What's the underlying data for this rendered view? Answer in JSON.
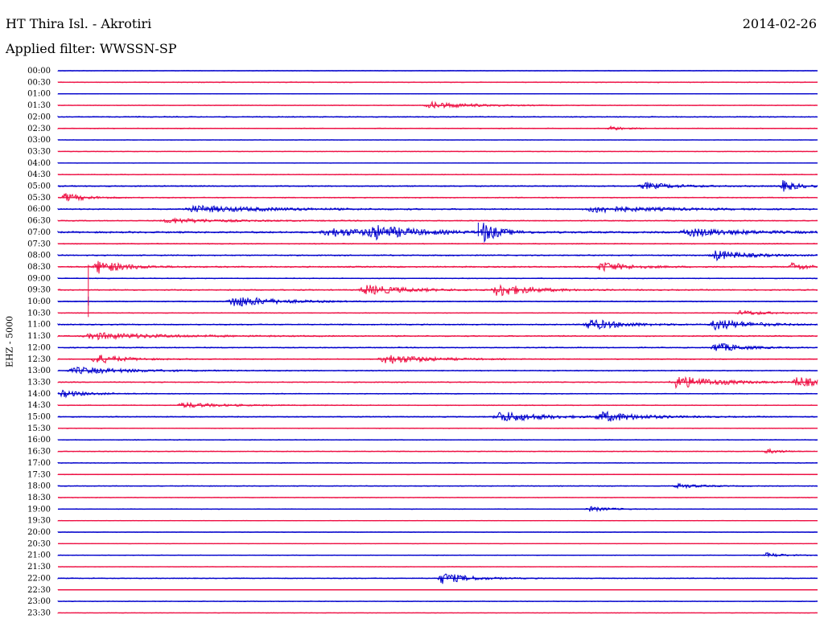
{
  "header": {
    "station": "HT Thira Isl. - Akrotiri",
    "date": "2014-02-26",
    "filter": "Applied filter: WWSSN-SP",
    "channel": "EHZ - 5000"
  },
  "colors": {
    "even_trace": "#0000cc",
    "odd_trace": "#ee1144"
  },
  "chart_data": {
    "type": "line",
    "title": "HT Thira Isl. - Akrotiri",
    "ylabel": "EHZ - 5000",
    "xlabel": "",
    "row_labels": [
      "00:00",
      "00:30",
      "01:00",
      "01:30",
      "02:00",
      "02:30",
      "03:00",
      "03:30",
      "04:00",
      "04:30",
      "05:00",
      "05:30",
      "06:00",
      "06:30",
      "07:00",
      "07:30",
      "08:00",
      "08:30",
      "09:00",
      "09:30",
      "10:00",
      "10:30",
      "11:00",
      "11:30",
      "12:00",
      "12:30",
      "13:00",
      "13:30",
      "14:00",
      "14:30",
      "15:00",
      "15:30",
      "16:00",
      "16:30",
      "17:00",
      "17:30",
      "18:00",
      "18:30",
      "19:00",
      "19:30",
      "20:00",
      "20:30",
      "21:00",
      "21:30",
      "22:00",
      "22:30",
      "23:00",
      "23:30"
    ],
    "x_range_minutes": [
      0,
      30
    ],
    "noise_level": [
      0.3,
      0.5,
      0.2,
      0.4,
      0.6,
      0.5,
      0.3,
      0.4,
      0.3,
      0.5,
      0.7,
      0.6,
      0.7,
      0.6,
      1.0,
      0.6,
      0.7,
      0.8,
      0.5,
      0.7,
      0.6,
      0.5,
      0.7,
      0.7,
      0.6,
      0.6,
      0.6,
      0.6,
      0.5,
      0.5,
      0.6,
      0.4,
      0.5,
      0.5,
      0.4,
      0.4,
      0.5,
      0.4,
      0.4,
      0.3,
      0.3,
      0.3,
      0.4,
      0.3,
      0.5,
      0.3,
      0.4,
      0.3
    ],
    "events": [
      {
        "row": 3,
        "minute": 14.8,
        "amp": 4,
        "dur": 1.6
      },
      {
        "row": 5,
        "minute": 21.8,
        "amp": 3,
        "dur": 0.5
      },
      {
        "row": 10,
        "minute": 23.2,
        "amp": 4,
        "dur": 1.2
      },
      {
        "row": 10,
        "minute": 28.6,
        "amp": 7,
        "dur": 0.6
      },
      {
        "row": 11,
        "minute": 0.3,
        "amp": 5,
        "dur": 0.8
      },
      {
        "row": 12,
        "minute": 5.5,
        "amp": 4,
        "dur": 3.0
      },
      {
        "row": 12,
        "minute": 21.3,
        "amp": 4,
        "dur": 2.5
      },
      {
        "row": 13,
        "minute": 4.5,
        "amp": 3,
        "dur": 2.0
      },
      {
        "row": 14,
        "minute": 10.8,
        "amp": 5,
        "dur": 2.0
      },
      {
        "row": 14,
        "minute": 12.5,
        "amp": 7,
        "dur": 1.5
      },
      {
        "row": 14,
        "minute": 16.8,
        "amp": 12,
        "dur": 0.6
      },
      {
        "row": 14,
        "minute": 25.0,
        "amp": 5,
        "dur": 2.0
      },
      {
        "row": 16,
        "minute": 26.0,
        "amp": 6,
        "dur": 1.2
      },
      {
        "row": 17,
        "minute": 1.6,
        "amp": 8,
        "dur": 1.0
      },
      {
        "row": 17,
        "minute": 21.5,
        "amp": 6,
        "dur": 1.0
      },
      {
        "row": 17,
        "minute": 29.0,
        "amp": 5,
        "dur": 0.6
      },
      {
        "row": 19,
        "minute": 12.2,
        "amp": 6,
        "dur": 1.5
      },
      {
        "row": 19,
        "minute": 17.4,
        "amp": 8,
        "dur": 1.2
      },
      {
        "row": 20,
        "minute": 7.0,
        "amp": 7,
        "dur": 1.5
      },
      {
        "row": 21,
        "minute": 27.0,
        "amp": 3,
        "dur": 1.0
      },
      {
        "row": 22,
        "minute": 21.0,
        "amp": 7,
        "dur": 1.2
      },
      {
        "row": 22,
        "minute": 26.0,
        "amp": 7,
        "dur": 1.2
      },
      {
        "row": 23,
        "minute": 1.5,
        "amp": 4,
        "dur": 2.5
      },
      {
        "row": 24,
        "minute": 26.0,
        "amp": 6,
        "dur": 1.0
      },
      {
        "row": 25,
        "minute": 1.5,
        "amp": 6,
        "dur": 1.0
      },
      {
        "row": 25,
        "minute": 13.0,
        "amp": 6,
        "dur": 1.5
      },
      {
        "row": 26,
        "minute": 0.8,
        "amp": 4,
        "dur": 2.0
      },
      {
        "row": 27,
        "minute": 24.5,
        "amp": 8,
        "dur": 1.5
      },
      {
        "row": 27,
        "minute": 29.2,
        "amp": 7,
        "dur": 0.8
      },
      {
        "row": 28,
        "minute": 0.2,
        "amp": 4,
        "dur": 1.0
      },
      {
        "row": 29,
        "minute": 5.0,
        "amp": 3,
        "dur": 1.5
      },
      {
        "row": 30,
        "minute": 17.5,
        "amp": 7,
        "dur": 1.5
      },
      {
        "row": 30,
        "minute": 21.5,
        "amp": 6,
        "dur": 1.5
      },
      {
        "row": 33,
        "minute": 28.0,
        "amp": 3,
        "dur": 0.5
      },
      {
        "row": 36,
        "minute": 24.5,
        "amp": 3,
        "dur": 0.8
      },
      {
        "row": 38,
        "minute": 21.0,
        "amp": 3,
        "dur": 0.8
      },
      {
        "row": 42,
        "minute": 28.0,
        "amp": 3,
        "dur": 0.6
      },
      {
        "row": 44,
        "minute": 15.2,
        "amp": 7,
        "dur": 1.0
      }
    ],
    "glitches": [
      {
        "row": 14,
        "minute": 16.6,
        "amp": 12
      },
      {
        "row": 20,
        "minute": 1.2,
        "amp": 6
      },
      {
        "row": 21,
        "minute": 1.2,
        "amp": 60
      }
    ]
  }
}
